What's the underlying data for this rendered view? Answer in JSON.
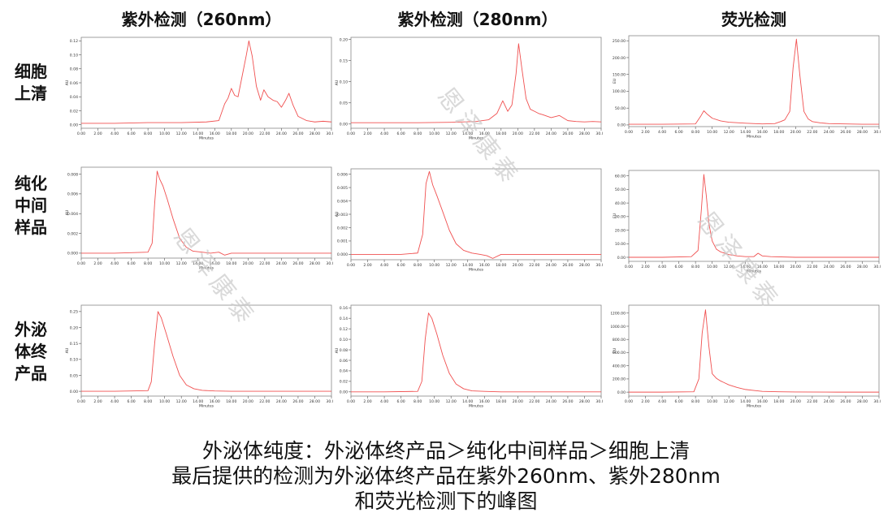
{
  "columns": [
    "紫外检测（260nm）",
    "紫外检测（280nm）",
    "荧光检测"
  ],
  "rows": [
    {
      "label_lines": [
        "细胞",
        "上清"
      ]
    },
    {
      "label_lines": [
        "纯化",
        "中间",
        "样品"
      ]
    },
    {
      "label_lines": [
        "外泌",
        "体终",
        "产品"
      ]
    }
  ],
  "caption_lines": [
    "外泌体纯度：外泌体终产品＞纯化中间样品＞细胞上清",
    "最后提供的检测为外泌体终产品在紫外260nm、紫外280nm",
    "和荧光检测下的峰图"
  ],
  "watermark_text": "恩泽康泰",
  "colors": {
    "trace": "#f05050",
    "axis": "#555555",
    "frame": "#888888"
  },
  "chart_data": [
    {
      "type": "line",
      "row": 0,
      "col": 0,
      "xlabel": "Minutes",
      "ylabel": "AU",
      "xlim": [
        0,
        30
      ],
      "ylim": [
        -0.005,
        0.125
      ],
      "x_ticks": [
        "0.00",
        "2.00",
        "4.00",
        "6.00",
        "8.00",
        "10.00",
        "12.00",
        "14.00",
        "16.00",
        "18.00",
        "20.00",
        "22.00",
        "24.00",
        "26.00",
        "28.00",
        "30.00"
      ],
      "y_ticks": [
        "0.00",
        "0.02",
        "0.04",
        "0.06",
        "0.08",
        "0.10",
        "0.12"
      ],
      "y_tick_values": [
        0,
        0.02,
        0.04,
        0.06,
        0.08,
        0.1,
        0.12
      ],
      "x": [
        0,
        4,
        8,
        12,
        15,
        16.5,
        17.2,
        17.6,
        18,
        18.4,
        18.8,
        19.3,
        19.8,
        20.1,
        20.5,
        21,
        21.5,
        21.9,
        22.4,
        23,
        23.5,
        24,
        24.5,
        24.9,
        25.4,
        26,
        27,
        28,
        29,
        30
      ],
      "y": [
        0.002,
        0.002,
        0.003,
        0.003,
        0.004,
        0.006,
        0.03,
        0.038,
        0.052,
        0.042,
        0.04,
        0.07,
        0.1,
        0.12,
        0.098,
        0.055,
        0.035,
        0.05,
        0.04,
        0.035,
        0.033,
        0.025,
        0.035,
        0.045,
        0.028,
        0.012,
        0.006,
        0.004,
        0.005,
        0.004
      ]
    },
    {
      "type": "line",
      "row": 0,
      "col": 1,
      "xlabel": "Minutes",
      "ylabel": "AU",
      "xlim": [
        0,
        30
      ],
      "ylim": [
        -0.01,
        0.205
      ],
      "x_ticks": [
        "0.00",
        "2.00",
        "4.00",
        "6.00",
        "8.00",
        "10.00",
        "12.00",
        "14.00",
        "16.00",
        "18.00",
        "20.00",
        "22.00",
        "24.00",
        "26.00",
        "28.00",
        "30.00"
      ],
      "y_ticks": [
        "0.00",
        "0.05",
        "0.10",
        "0.15",
        "0.20"
      ],
      "y_tick_values": [
        0,
        0.05,
        0.1,
        0.15,
        0.2
      ],
      "x": [
        0,
        4,
        8,
        12,
        15,
        16.5,
        17.5,
        18.2,
        18.8,
        19.3,
        19.8,
        20.1,
        20.5,
        21,
        21.5,
        22,
        22.5,
        23,
        24,
        25,
        26,
        27,
        28,
        29,
        30
      ],
      "y": [
        0.003,
        0.003,
        0.003,
        0.004,
        0.006,
        0.01,
        0.025,
        0.055,
        0.03,
        0.045,
        0.12,
        0.19,
        0.13,
        0.06,
        0.035,
        0.03,
        0.025,
        0.022,
        0.015,
        0.02,
        0.008,
        0.006,
        0.005,
        0.006,
        0.005
      ]
    },
    {
      "type": "line",
      "row": 0,
      "col": 2,
      "xlabel": "Minutes",
      "ylabel": "EU",
      "xlim": [
        0,
        30
      ],
      "ylim": [
        -5,
        265
      ],
      "x_ticks": [
        "0.00",
        "2.00",
        "4.00",
        "6.00",
        "8.00",
        "10.00",
        "12.00",
        "14.00",
        "16.00",
        "18.00",
        "20.00",
        "22.00",
        "24.00",
        "26.00",
        "28.00",
        "30.00"
      ],
      "y_ticks": [
        "0.00",
        "50.00",
        "100.00",
        "150.00",
        "200.00",
        "250.00"
      ],
      "y_tick_values": [
        0,
        50,
        100,
        150,
        200,
        250
      ],
      "x": [
        0,
        4,
        8,
        8.6,
        9,
        9.4,
        10,
        11,
        12,
        14,
        16,
        17.5,
        18.2,
        18.7,
        19.3,
        19.7,
        20.1,
        20.5,
        21,
        21.5,
        22,
        23,
        24,
        26,
        28,
        30
      ],
      "y": [
        2,
        2,
        3,
        25,
        42,
        32,
        20,
        12,
        8,
        5,
        3,
        4,
        10,
        15,
        40,
        170,
        255,
        150,
        40,
        18,
        10,
        6,
        4,
        3,
        2,
        2
      ]
    },
    {
      "type": "line",
      "row": 1,
      "col": 0,
      "xlabel": "Minutes",
      "ylabel": "AU",
      "xlim": [
        0,
        30
      ],
      "ylim": [
        -0.0005,
        0.0087
      ],
      "x_ticks": [
        "0.00",
        "2.00",
        "4.00",
        "6.00",
        "8.00",
        "10.00",
        "12.00",
        "14.00",
        "16.00",
        "18.00",
        "20.00",
        "22.00",
        "24.00",
        "26.00",
        "28.00",
        "30.00"
      ],
      "y_ticks": [
        "0.000",
        "0.002",
        "0.004",
        "0.006",
        "0.008"
      ],
      "y_tick_values": [
        0,
        0.002,
        0.004,
        0.006,
        0.008
      ],
      "x": [
        0,
        4,
        8,
        8.5,
        8.8,
        9.1,
        9.4,
        9.8,
        10.3,
        11,
        11.8,
        12.6,
        13.4,
        14.5,
        15.5,
        16.5,
        17.2,
        18,
        20,
        25,
        30
      ],
      "y": [
        0,
        0,
        0.0001,
        0.001,
        0.005,
        0.0083,
        0.0075,
        0.0068,
        0.0055,
        0.0035,
        0.0015,
        0.0006,
        0.0002,
        0.0001,
        0,
        0.0001,
        -0.0002,
        0,
        0,
        0,
        0
      ]
    },
    {
      "type": "line",
      "row": 1,
      "col": 1,
      "xlabel": "Minutes",
      "ylabel": "AU",
      "xlim": [
        0,
        30
      ],
      "ylim": [
        -0.0004,
        0.0064
      ],
      "x_ticks": [
        "0.00",
        "2.00",
        "4.00",
        "6.00",
        "8.00",
        "10.00",
        "12.00",
        "14.00",
        "16.00",
        "18.00",
        "20.00",
        "22.00",
        "24.00",
        "26.00",
        "28.00",
        "30.00"
      ],
      "y_ticks": [
        "0.000",
        "0.001",
        "0.002",
        "0.003",
        "0.004",
        "0.005",
        "0.006"
      ],
      "y_tick_values": [
        0,
        0.001,
        0.002,
        0.003,
        0.004,
        0.005,
        0.006
      ],
      "x": [
        0,
        3,
        6,
        8,
        8.6,
        9,
        9.4,
        9.8,
        10.3,
        11,
        11.8,
        12.6,
        13.5,
        14.5,
        15.5,
        16.3,
        17,
        18,
        20,
        25,
        30
      ],
      "y": [
        0,
        0,
        0,
        0.0001,
        0.0015,
        0.0053,
        0.0062,
        0.0052,
        0.0044,
        0.0032,
        0.0018,
        0.0008,
        0.0003,
        0.0001,
        0,
        -0.0001,
        -0.0003,
        0,
        0,
        0,
        0
      ]
    },
    {
      "type": "line",
      "row": 1,
      "col": 2,
      "xlabel": "Minutes",
      "ylabel": "EU",
      "xlim": [
        0,
        30
      ],
      "ylim": [
        -3,
        64
      ],
      "x_ticks": [
        "0.00",
        "2.00",
        "4.00",
        "6.00",
        "8.00",
        "10.00",
        "12.00",
        "14.00",
        "16.00",
        "18.00",
        "20.00",
        "22.00",
        "24.00",
        "26.00",
        "28.00",
        "30.00"
      ],
      "y_ticks": [
        "0.00",
        "10.00",
        "20.00",
        "30.00",
        "40.00",
        "50.00",
        "60.00"
      ],
      "y_tick_values": [
        0,
        10,
        20,
        30,
        40,
        50,
        60
      ],
      "x": [
        0,
        4,
        7.5,
        8.3,
        8.7,
        9,
        9.3,
        9.6,
        10,
        10.5,
        11,
        11.5,
        12,
        13,
        14,
        15,
        15.5,
        16,
        17,
        20,
        25,
        30
      ],
      "y": [
        0,
        0,
        0.5,
        5,
        35,
        61,
        45,
        25,
        12,
        6,
        4,
        3,
        2,
        1,
        0.5,
        0.5,
        3,
        1,
        0.5,
        0,
        0,
        0
      ]
    },
    {
      "type": "line",
      "row": 2,
      "col": 0,
      "xlabel": "Minutes",
      "ylabel": "AU",
      "xlim": [
        0,
        30
      ],
      "ylim": [
        -0.015,
        0.27
      ],
      "x_ticks": [
        "0.00",
        "2.00",
        "4.00",
        "6.00",
        "8.00",
        "10.00",
        "12.00",
        "14.00",
        "16.00",
        "18.00",
        "20.00",
        "22.00",
        "24.00",
        "26.00",
        "28.00",
        "30.00"
      ],
      "y_ticks": [
        "0.00",
        "0.05",
        "0.10",
        "0.15",
        "0.20",
        "0.25"
      ],
      "y_tick_values": [
        0,
        0.05,
        0.1,
        0.15,
        0.2,
        0.25
      ],
      "x": [
        0,
        4,
        8,
        8.4,
        8.8,
        9.2,
        9.6,
        10.2,
        11,
        11.8,
        12.6,
        13.5,
        14.5,
        16,
        18,
        20,
        25,
        30
      ],
      "y": [
        0,
        0,
        0.002,
        0.03,
        0.15,
        0.25,
        0.23,
        0.18,
        0.11,
        0.05,
        0.02,
        0.008,
        0.003,
        0.001,
        0,
        0,
        0,
        0
      ]
    },
    {
      "type": "line",
      "row": 2,
      "col": 1,
      "xlabel": "Minutes",
      "ylabel": "AU",
      "xlim": [
        0,
        30
      ],
      "ylim": [
        -0.008,
        0.165
      ],
      "x_ticks": [
        "0.00",
        "2.00",
        "4.00",
        "6.00",
        "8.00",
        "10.00",
        "12.00",
        "14.00",
        "16.00",
        "18.00",
        "20.00",
        "22.00",
        "24.00",
        "26.00",
        "28.00",
        "30.00"
      ],
      "y_ticks": [
        "0.00",
        "0.02",
        "0.04",
        "0.06",
        "0.08",
        "0.10",
        "0.12",
        "0.14",
        "0.16"
      ],
      "y_tick_values": [
        0,
        0.02,
        0.04,
        0.06,
        0.08,
        0.1,
        0.12,
        0.14,
        0.16
      ],
      "x": [
        0,
        4,
        8,
        8.5,
        8.9,
        9.3,
        9.7,
        10.3,
        11,
        11.8,
        12.6,
        13.5,
        14.5,
        16,
        18,
        20,
        25,
        30
      ],
      "y": [
        0,
        0,
        0.001,
        0.02,
        0.1,
        0.15,
        0.14,
        0.11,
        0.07,
        0.035,
        0.015,
        0.006,
        0.002,
        0.001,
        0,
        0,
        0,
        0
      ]
    },
    {
      "type": "line",
      "row": 2,
      "col": 2,
      "xlabel": "Minutes",
      "ylabel": "EU",
      "xlim": [
        0,
        30
      ],
      "ylim": [
        -60,
        1320
      ],
      "x_ticks": [
        "0.00",
        "2.00",
        "4.00",
        "6.00",
        "8.00",
        "10.00",
        "12.00",
        "14.00",
        "16.00",
        "18.00",
        "20.00",
        "22.00",
        "24.00",
        "26.00",
        "28.00",
        "30.00"
      ],
      "y_ticks": [
        "0.00",
        "200.00",
        "400.00",
        "600.00",
        "800.00",
        "1000.00",
        "1200.00"
      ],
      "y_tick_values": [
        0,
        200,
        400,
        600,
        800,
        1000,
        1200
      ],
      "x": [
        0,
        4,
        7.8,
        8.4,
        8.8,
        9.2,
        9.6,
        10,
        10.5,
        11,
        12,
        13,
        14,
        15,
        16,
        18,
        20,
        25,
        30
      ],
      "y": [
        0,
        0,
        5,
        200,
        900,
        1250,
        700,
        280,
        210,
        170,
        110,
        70,
        40,
        25,
        12,
        5,
        2,
        0,
        0
      ]
    }
  ]
}
